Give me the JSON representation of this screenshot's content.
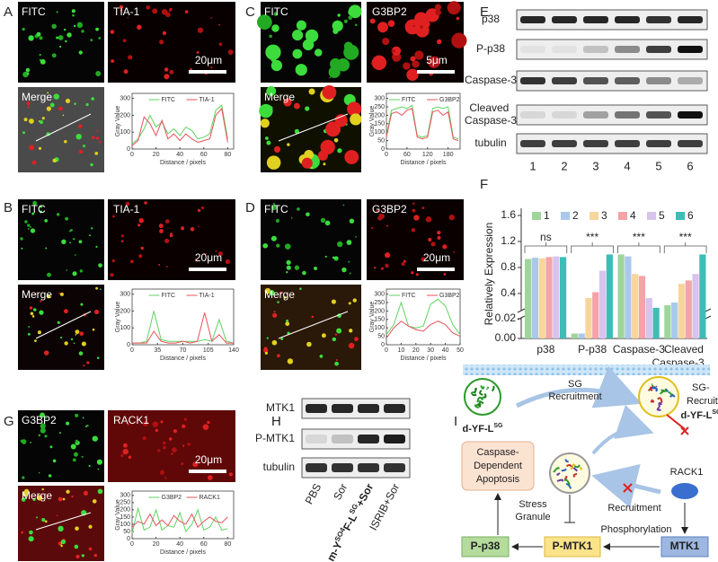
{
  "image_panels": [
    {
      "label": "A",
      "channels": [
        "FITC",
        "TIA-1"
      ],
      "merge": "Merge",
      "scale_bar": "20μm",
      "plot": {
        "x": [
          0,
          5,
          10,
          15,
          20,
          25,
          30,
          35,
          40,
          45,
          50,
          55,
          60,
          65,
          70,
          75,
          80
        ],
        "xlim": [
          0,
          85
        ],
        "ylim": [
          0,
          330
        ],
        "xticks": [
          0,
          20,
          40,
          60,
          80
        ],
        "yticks": [
          0,
          100,
          200,
          300
        ],
        "xlabel": "Distance / pixels",
        "ylabel": "Gray Value",
        "series": [
          {
            "name": "FITC",
            "color": "#5fd35f",
            "values": [
              30,
              60,
              120,
              200,
              130,
              160,
              90,
              120,
              80,
              130,
              110,
              60,
              70,
              90,
              230,
              260,
              60
            ]
          },
          {
            "name": "TIA-1",
            "color": "#e8505b",
            "values": [
              20,
              50,
              190,
              150,
              80,
              170,
              60,
              90,
              50,
              90,
              60,
              40,
              50,
              60,
              200,
              240,
              40
            ]
          }
        ]
      }
    },
    {
      "label": "B",
      "channels": [
        "FITC",
        "TIA-1"
      ],
      "merge": "Merge",
      "scale_bar": "20μm",
      "plot": {
        "x": [
          0,
          10,
          20,
          30,
          40,
          50,
          60,
          70,
          80,
          90,
          100,
          110,
          120,
          130,
          140
        ],
        "xlim": [
          0,
          140
        ],
        "ylim": [
          0,
          330
        ],
        "xticks": [
          0,
          35,
          70,
          105,
          140
        ],
        "yticks": [
          0,
          100,
          200,
          300
        ],
        "xlabel": "Distance / pixels",
        "ylabel": "Gray Value",
        "series": [
          {
            "name": "FITC",
            "color": "#5fd35f",
            "values": [
              10,
              10,
              20,
              200,
              30,
              20,
              20,
              20,
              20,
              20,
              30,
              20,
              150,
              20,
              10
            ]
          },
          {
            "name": "TIA-1",
            "color": "#e8505b",
            "values": [
              10,
              10,
              10,
              80,
              20,
              10,
              10,
              20,
              10,
              20,
              190,
              20,
              60,
              10,
              10
            ]
          }
        ]
      }
    },
    {
      "label": "C",
      "channels": [
        "FITC",
        "G3BP2"
      ],
      "merge": "Merge",
      "scale_bar": "5μm",
      "plot": {
        "x": [
          0,
          15,
          30,
          45,
          60,
          75,
          90,
          105,
          120,
          135,
          150,
          165,
          180,
          195,
          210
        ],
        "xlim": [
          0,
          215
        ],
        "ylim": [
          0,
          330
        ],
        "xticks": [
          0,
          60,
          120,
          180
        ],
        "yticks": [
          0,
          50,
          100,
          150,
          200,
          250,
          300
        ],
        "xlabel": "Distance / pixels",
        "ylabel": "Gray Value",
        "series": [
          {
            "name": "FITC",
            "color": "#5fd35f",
            "values": [
              80,
              230,
              240,
              250,
              240,
              260,
              80,
              70,
              80,
              240,
              250,
              240,
              250,
              70,
              60
            ]
          },
          {
            "name": "G3BP2",
            "color": "#e8505b",
            "values": [
              70,
              210,
              220,
              200,
              230,
              240,
              70,
              60,
              70,
              220,
              230,
              200,
              220,
              60,
              50
            ]
          }
        ]
      }
    },
    {
      "label": "D",
      "channels": [
        "FITC",
        "G3BP2"
      ],
      "merge": "Merge",
      "scale_bar": "20μm",
      "plot": {
        "x": [
          0,
          5,
          10,
          15,
          20,
          25,
          30,
          35,
          40,
          45,
          50
        ],
        "xlim": [
          0,
          50
        ],
        "ylim": [
          0,
          330
        ],
        "xticks": [
          0,
          10,
          20,
          30,
          40,
          50
        ],
        "yticks": [
          0,
          50,
          100,
          150,
          200,
          250,
          300
        ],
        "xlabel": "Distance / pixels",
        "ylabel": "Gray Value",
        "series": [
          {
            "name": "FITC",
            "color": "#5fd35f",
            "values": [
              60,
              120,
              250,
              110,
              100,
              110,
              240,
              270,
              230,
              120,
              60
            ]
          },
          {
            "name": "G3BP2",
            "color": "#e8505b",
            "values": [
              40,
              100,
              140,
              110,
              90,
              80,
              120,
              140,
              120,
              70,
              50
            ]
          }
        ]
      }
    },
    {
      "label": "G",
      "channels": [
        "G3BP2",
        "RACK1"
      ],
      "merge": "Merge",
      "scale_bar": "20μm",
      "plot": {
        "x": [
          0,
          5,
          10,
          15,
          20,
          25,
          30,
          35,
          40,
          45,
          50,
          55,
          60,
          65,
          70,
          75,
          80
        ],
        "xlim": [
          0,
          85
        ],
        "ylim": [
          0,
          330
        ],
        "xticks": [
          0,
          20,
          40,
          60,
          80
        ],
        "yticks": [
          0,
          50,
          100,
          150,
          200,
          250,
          300
        ],
        "xlabel": "Distance / pixels",
        "ylabel": "Gray Value",
        "series": [
          {
            "name": "G3BP2",
            "color": "#5fd35f",
            "values": [
              40,
              210,
              60,
              80,
              200,
              60,
              90,
              80,
              180,
              50,
              100,
              200,
              60,
              80,
              150,
              60,
              70
            ]
          },
          {
            "name": "RACK1",
            "color": "#e8505b",
            "values": [
              80,
              120,
              100,
              170,
              90,
              130,
              90,
              160,
              120,
              100,
              170,
              80,
              120,
              150,
              120,
              110,
              150
            ]
          }
        ]
      }
    }
  ],
  "panel_e": {
    "label": "E",
    "rows": [
      "p38",
      "P-p38",
      "Caspase-3",
      "Cleaved Caspase-3",
      "tubulin"
    ],
    "lanes": [
      "1",
      "2",
      "3",
      "4",
      "5",
      "6"
    ]
  },
  "chart_data": {
    "type": "bar",
    "label": "F",
    "categories": [
      "p38",
      "P-p38",
      "Caspase-3",
      "Cleaved Caspase-3"
    ],
    "series": [
      {
        "name": "1",
        "color": "#9fd59b",
        "values": [
          0.93,
          0.005,
          1.0,
          0.22
        ]
      },
      {
        "name": "2",
        "color": "#a9c9ec",
        "values": [
          0.95,
          0.005,
          0.97,
          0.26
        ]
      },
      {
        "name": "3",
        "color": "#f7d59c",
        "values": [
          0.94,
          0.33,
          0.7,
          0.55
        ]
      },
      {
        "name": "4",
        "color": "#f4a3a8",
        "values": [
          0.96,
          0.42,
          0.67,
          0.6
        ]
      },
      {
        "name": "5",
        "color": "#d8c3ee",
        "values": [
          0.97,
          0.75,
          0.33,
          0.7
        ]
      },
      {
        "name": "6",
        "color": "#3dbdb5",
        "values": [
          0.96,
          1.0,
          0.18,
          1.0
        ]
      }
    ],
    "ylim": [
      0,
      1.6
    ],
    "y_break": [
      0.02,
      0.15
    ],
    "yticks": [
      {
        "value": 0,
        "label": "0.00"
      },
      0.02,
      0.4,
      0.8,
      1.2,
      1.6
    ],
    "ylabel": "Relatively Expression",
    "significance": [
      {
        "category": 0,
        "label": "ns"
      },
      {
        "category": 1,
        "label": "***"
      },
      {
        "category": 2,
        "label": "***"
      },
      {
        "category": 3,
        "label": "***"
      }
    ]
  },
  "panel_h": {
    "label": "H",
    "rows": [
      "MTK1",
      "P-MTK1",
      "tubulin"
    ],
    "lanes": [
      [
        {
          "text": "PBS"
        }
      ],
      [
        {
          "text": "Sor"
        }
      ],
      [
        {
          "text": "m-Y"
        },
        {
          "text": "SO4",
          "sup": true
        },
        {
          "text": "F-L"
        },
        {
          "text": "SG",
          "sup": true
        },
        {
          "text": "+Sor"
        }
      ],
      [
        {
          "text": "ISRIB+Sor"
        }
      ]
    ]
  },
  "panel_i": {
    "label": "I",
    "peptide": {
      "base": "d-YF-L",
      "sup": "SG"
    },
    "sg_recruitment": [
      "SG",
      "Recruitment"
    ],
    "recruited": [
      "SG-",
      "Recruited"
    ],
    "recruited_peptide": {
      "base": "d-YF-L",
      "sup": "SG"
    },
    "apoptosis": [
      "Caspase-",
      "Dependent",
      "Apoptosis"
    ],
    "stress_granule": [
      "Stress",
      "Granule"
    ],
    "recruitment": "Recruitment",
    "rack1": "RACK1",
    "phosphorylation": "Phosphorylation",
    "p_p38": "P-p38",
    "p_mtk1": "P-MTK1",
    "mtk1": "MTK1"
  }
}
